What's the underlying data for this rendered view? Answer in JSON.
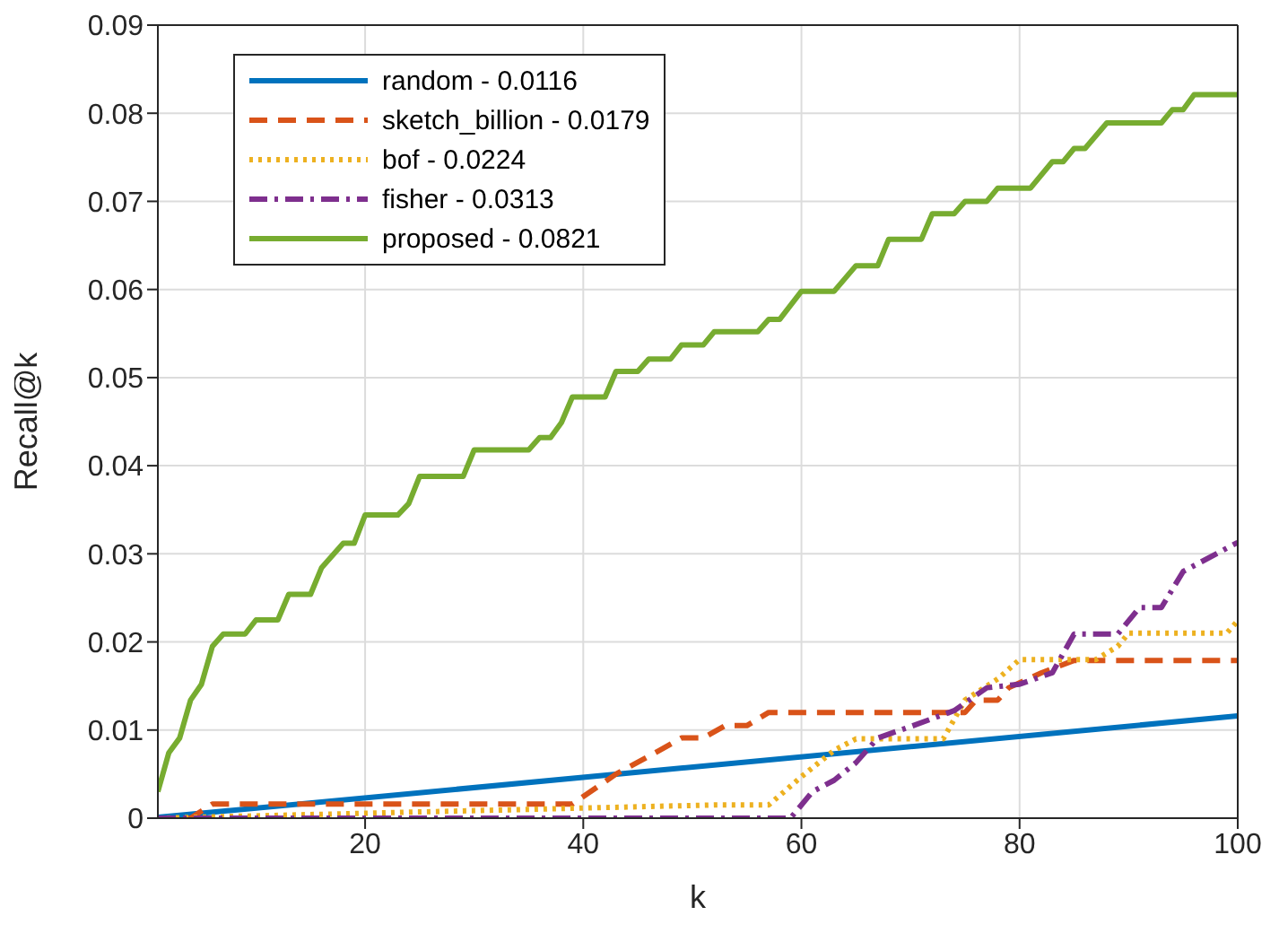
{
  "chart_data": {
    "type": "line",
    "xlabel": "k",
    "ylabel": "Recall@k",
    "xlim": [
      1,
      100
    ],
    "xticks": [
      20,
      40,
      60,
      80,
      100
    ],
    "ylim": [
      0,
      0.09
    ],
    "yticks": [
      0,
      0.01,
      0.02,
      0.03,
      0.04,
      0.05,
      0.06,
      0.07,
      0.08,
      0.09
    ],
    "grid": true,
    "legend": "top left",
    "marker": "none",
    "series": [
      {
        "name": "random - 0.0116",
        "color": "#0072bd",
        "line_style": "solid",
        "x": [
          1,
          100
        ],
        "values": [
          0.0001,
          0.0116
        ]
      },
      {
        "name": "sketch_billion - 0.0179",
        "color": "#d95319",
        "line_style": "dashed",
        "x": [
          1,
          4,
          6,
          39,
          43,
          47,
          49,
          51,
          53,
          55,
          57,
          75,
          76,
          78,
          79,
          82,
          85,
          100
        ],
        "values": [
          0,
          0,
          0.0016,
          0.0016,
          0.005,
          0.0077,
          0.0091,
          0.0091,
          0.0105,
          0.0105,
          0.012,
          0.012,
          0.0134,
          0.0134,
          0.0148,
          0.0165,
          0.0179,
          0.0179
        ]
      },
      {
        "name": "bof - 0.0224",
        "color": "#edb120",
        "line_style": "dotted",
        "x": [
          1,
          52,
          57,
          60,
          63,
          65,
          73,
          75,
          78,
          80,
          87,
          89,
          90,
          99,
          100
        ],
        "values": [
          0,
          0.0015,
          0.0015,
          0.0047,
          0.0077,
          0.009,
          0.009,
          0.0134,
          0.0158,
          0.018,
          0.018,
          0.0195,
          0.021,
          0.021,
          0.0224
        ]
      },
      {
        "name": "fisher - 0.0313",
        "color": "#7e2f8e",
        "line_style": "dashdot",
        "x": [
          1,
          59,
          61,
          63,
          65,
          67,
          70,
          74,
          77,
          80,
          83,
          85,
          89,
          91,
          93,
          95,
          100
        ],
        "values": [
          0,
          0,
          0.003,
          0.0043,
          0.0063,
          0.0091,
          0.0104,
          0.0122,
          0.0148,
          0.0152,
          0.0165,
          0.0209,
          0.0209,
          0.0239,
          0.0239,
          0.028,
          0.0313
        ]
      },
      {
        "name": "proposed - 0.0821",
        "color": "#77ac30",
        "line_style": "solid",
        "x": [
          1,
          2,
          3,
          4,
          5,
          6,
          7,
          9,
          10,
          12,
          13,
          15,
          16,
          18,
          19,
          20,
          23,
          24,
          25,
          29,
          30,
          35,
          36,
          37,
          38,
          39,
          42,
          43,
          45,
          46,
          48,
          49,
          51,
          52,
          56,
          57,
          58,
          60,
          63,
          65,
          67,
          68,
          71,
          72,
          74,
          75,
          77,
          78,
          81,
          83,
          84,
          85,
          86,
          88,
          93,
          94,
          95,
          96,
          100
        ],
        "values": [
          0.003,
          0.0074,
          0.0091,
          0.0134,
          0.0152,
          0.0195,
          0.0209,
          0.0209,
          0.0225,
          0.0225,
          0.0254,
          0.0254,
          0.0284,
          0.0312,
          0.0312,
          0.0344,
          0.0344,
          0.0357,
          0.0388,
          0.0388,
          0.0418,
          0.0418,
          0.0432,
          0.0432,
          0.0449,
          0.0478,
          0.0478,
          0.0507,
          0.0507,
          0.0521,
          0.0521,
          0.0537,
          0.0537,
          0.0552,
          0.0552,
          0.0566,
          0.0566,
          0.0598,
          0.0598,
          0.0627,
          0.0627,
          0.0657,
          0.0657,
          0.0686,
          0.0686,
          0.07,
          0.07,
          0.0715,
          0.0715,
          0.0745,
          0.0745,
          0.076,
          0.076,
          0.0789,
          0.0789,
          0.0804,
          0.0804,
          0.0821,
          0.0821
        ]
      }
    ]
  }
}
